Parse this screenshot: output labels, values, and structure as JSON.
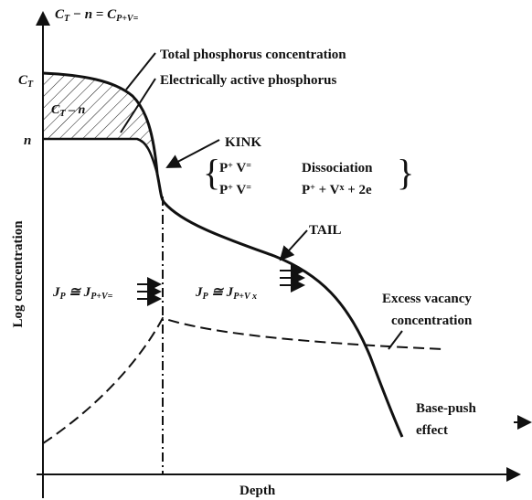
{
  "top_equation": [
    {
      "text": "C"
    },
    {
      "sub": "T"
    },
    {
      "text": " − n = C"
    },
    {
      "sub": "P+V="
    }
  ],
  "total_label": "Total phosphorus concentration",
  "active_label": "Electrically active phosphorus",
  "ct_label": [
    {
      "text": "C"
    },
    {
      "sub": "T"
    }
  ],
  "n_label": "n",
  "region_label": [
    {
      "text": "C"
    },
    {
      "sub": "T"
    },
    {
      "text": " – n"
    }
  ],
  "kink_label": "KINK",
  "reaction": {
    "left_top": [
      {
        "text": "P"
      },
      {
        "sup": "+"
      },
      {
        "text": " V"
      },
      {
        "sup": "="
      }
    ],
    "right_top": [
      {
        "text": "Dissociation"
      }
    ],
    "left_bottom": [
      {
        "text": "P"
      },
      {
        "sup": "+"
      },
      {
        "text": " V"
      },
      {
        "sup": "="
      }
    ],
    "right_bottom": [
      {
        "text": "P"
      },
      {
        "sup": "+"
      },
      {
        "text": " + V"
      },
      {
        "sup": "x"
      },
      {
        "text": " + 2e"
      }
    ]
  },
  "tail_label": "TAIL",
  "flux_left": [
    {
      "text": "J"
    },
    {
      "sub": "P"
    },
    {
      "text": " ≅ J"
    },
    {
      "sub": "P+V="
    }
  ],
  "flux_right": [
    {
      "text": "J"
    },
    {
      "sub": "P"
    },
    {
      "text": " ≅ J"
    },
    {
      "sub": "P+V x"
    }
  ],
  "vacancy_label": [
    "Excess vacancy",
    "concentration"
  ],
  "base_push_label": [
    "Base-push",
    "effect"
  ],
  "x_axis_label": "Depth",
  "y_axis_label": "Log concentration"
}
